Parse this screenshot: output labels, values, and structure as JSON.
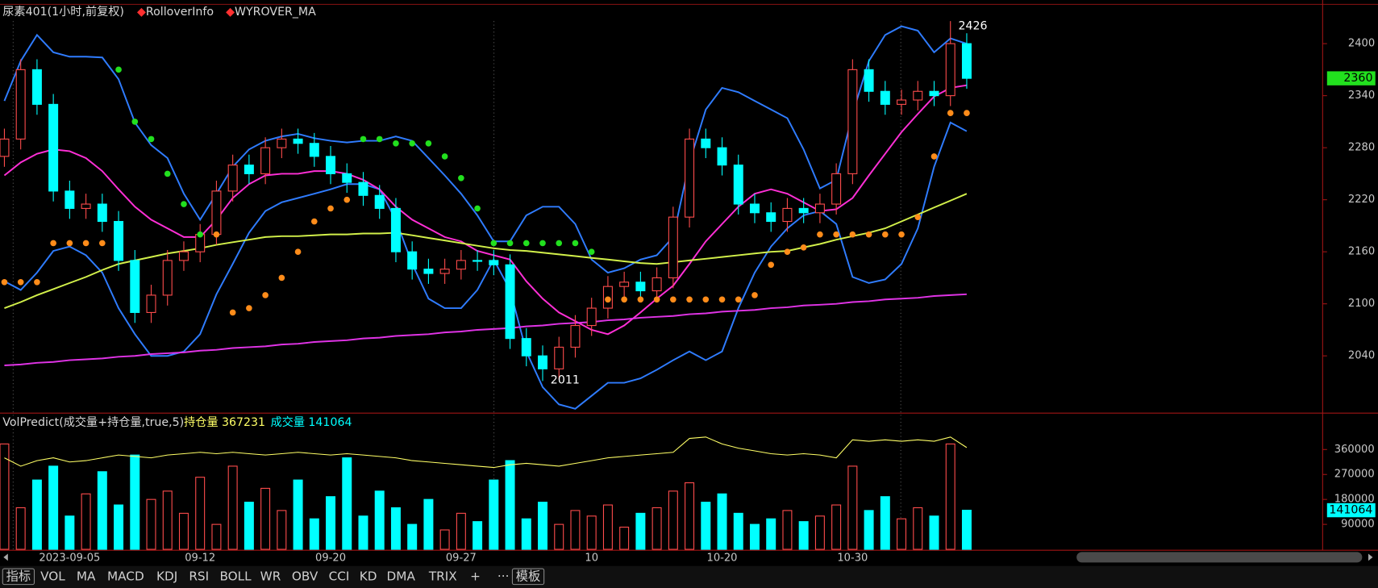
{
  "header": {
    "title": "尿素401(1小时,前复权)",
    "indicators": [
      "RolloverInfo",
      "WYROVER_MA"
    ]
  },
  "chart_data": [
    {
      "type": "candlestick",
      "categories": [
        null,
        null,
        null,
        null,
        "2023-09-05",
        null,
        null,
        null,
        null,
        null,
        null,
        null,
        "09-12",
        null,
        null,
        null,
        null,
        null,
        null,
        null,
        "09-20",
        null,
        null,
        null,
        null,
        null,
        null,
        null,
        "09-27",
        null,
        null,
        null,
        null,
        null,
        null,
        null,
        "10",
        null,
        null,
        null,
        null,
        null,
        null,
        null,
        "10-20",
        null,
        null,
        null,
        null,
        null,
        null,
        null,
        "10-30",
        null,
        null,
        null,
        null,
        null,
        null,
        null
      ],
      "open": [
        2270,
        2290,
        2370,
        2330,
        2230,
        2210,
        2215,
        2195,
        2150,
        2090,
        2110,
        2150,
        2160,
        2180,
        2230,
        2260,
        2250,
        2280,
        2290,
        2285,
        2270,
        2250,
        2240,
        2225,
        2210,
        2160,
        2140,
        2135,
        2140,
        2150,
        2150,
        2145,
        2060,
        2040,
        2025,
        2050,
        2075,
        2095,
        2120,
        2125,
        2115,
        2130,
        2200,
        2290,
        2280,
        2260,
        2215,
        2205,
        2195,
        2210,
        2205,
        2215,
        2250,
        2370,
        2345,
        2330,
        2335,
        2345,
        2340,
        2400
      ],
      "high": [
        2302,
        2382,
        2382,
        2342,
        2242,
        2227,
        2227,
        2207,
        2162,
        2122,
        2162,
        2172,
        2192,
        2242,
        2272,
        2272,
        2292,
        2302,
        2302,
        2297,
        2282,
        2262,
        2252,
        2237,
        2222,
        2172,
        2152,
        2152,
        2162,
        2162,
        2162,
        2157,
        2072,
        2052,
        2062,
        2087,
        2107,
        2132,
        2137,
        2137,
        2142,
        2212,
        2302,
        2302,
        2292,
        2272,
        2227,
        2217,
        2222,
        2222,
        2227,
        2262,
        2382,
        2382,
        2357,
        2347,
        2357,
        2357,
        2426,
        2412
      ],
      "low": [
        2258,
        2278,
        2318,
        2218,
        2198,
        2198,
        2183,
        2138,
        2078,
        2078,
        2098,
        2138,
        2148,
        2168,
        2218,
        2238,
        2238,
        2268,
        2273,
        2258,
        2238,
        2228,
        2213,
        2198,
        2148,
        2128,
        2123,
        2123,
        2128,
        2138,
        2133,
        2048,
        2028,
        2011,
        2013,
        2038,
        2063,
        2083,
        2108,
        2103,
        2103,
        2118,
        2188,
        2268,
        2248,
        2203,
        2193,
        2183,
        2183,
        2193,
        2193,
        2203,
        2238,
        2333,
        2318,
        2318,
        2323,
        2328,
        2328,
        2348
      ],
      "close": [
        2290,
        2370,
        2330,
        2230,
        2210,
        2215,
        2195,
        2150,
        2090,
        2110,
        2150,
        2160,
        2180,
        2230,
        2260,
        2250,
        2280,
        2290,
        2285,
        2270,
        2250,
        2240,
        2225,
        2210,
        2160,
        2140,
        2135,
        2140,
        2150,
        2150,
        2145,
        2060,
        2040,
        2025,
        2050,
        2075,
        2095,
        2120,
        2125,
        2115,
        2130,
        2200,
        2290,
        2280,
        2260,
        2215,
        2205,
        2195,
        2210,
        2205,
        2215,
        2250,
        2370,
        2345,
        2330,
        2335,
        2345,
        2340,
        2400,
        2360
      ],
      "up_color": "#ff4c4c",
      "down_color": "#00ffff",
      "lines": [
        {
          "color": "#2f7cff",
          "values": [
            2334,
            2380,
            2410,
            2390,
            2385,
            2385,
            2384,
            2359,
            2309,
            2283,
            2268,
            2227,
            2197,
            2227,
            2258,
            2278,
            2288,
            2293,
            2296,
            2291,
            2288,
            2286,
            2288,
            2288,
            2293,
            2288,
            2268,
            2248,
            2227,
            2202,
            2172,
            2172,
            2202,
            2212,
            2212,
            2192,
            2151,
            2136,
            2141,
            2151,
            2156,
            2177,
            2263,
            2324,
            2349,
            2344,
            2334,
            2324,
            2314,
            2278,
            2233,
            2243,
            2319,
            2380,
            2410,
            2420,
            2415,
            2390,
            2406,
            2400
          ]
        },
        {
          "color": "#2f7cff",
          "values": [
            2126,
            2116,
            2136,
            2161,
            2166,
            2156,
            2136,
            2095,
            2065,
            2040,
            2040,
            2045,
            2065,
            2111,
            2146,
            2182,
            2207,
            2217,
            2222,
            2227,
            2232,
            2238,
            2238,
            2232,
            2197,
            2146,
            2106,
            2095,
            2095,
            2116,
            2151,
            2116,
            2045,
            2004,
            1984,
            1979,
            1994,
            2009,
            2009,
            2014,
            2024,
            2035,
            2045,
            2035,
            2045,
            2095,
            2136,
            2166,
            2187,
            2202,
            2207,
            2192,
            2131,
            2124,
            2128,
            2146,
            2187,
            2258,
            2309,
            2299
          ]
        },
        {
          "color": "#ff2fd6",
          "values": [
            2248,
            2263,
            2273,
            2278,
            2276,
            2268,
            2253,
            2232,
            2212,
            2197,
            2187,
            2177,
            2177,
            2197,
            2222,
            2238,
            2248,
            2250,
            2250,
            2253,
            2253,
            2250,
            2243,
            2232,
            2212,
            2197,
            2187,
            2177,
            2172,
            2161,
            2156,
            2151,
            2126,
            2106,
            2090,
            2080,
            2070,
            2065,
            2075,
            2090,
            2106,
            2121,
            2146,
            2172,
            2192,
            2212,
            2227,
            2232,
            2227,
            2217,
            2207,
            2209,
            2222,
            2248,
            2273,
            2298,
            2319,
            2339,
            2349,
            2352
          ]
        },
        {
          "color": "#d2f04a",
          "values": [
            2095,
            2102,
            2110,
            2117,
            2124,
            2131,
            2139,
            2146,
            2150,
            2154,
            2158,
            2161,
            2164,
            2168,
            2171,
            2174,
            2177,
            2178,
            2178,
            2179,
            2180,
            2180,
            2181,
            2181,
            2182,
            2179,
            2176,
            2173,
            2170,
            2167,
            2164,
            2162,
            2161,
            2159,
            2157,
            2155,
            2153,
            2151,
            2149,
            2147,
            2146,
            2148,
            2150,
            2152,
            2154,
            2156,
            2158,
            2160,
            2161,
            2165,
            2169,
            2174,
            2178,
            2182,
            2187,
            2195,
            2203,
            2211,
            2219,
            2227
          ]
        },
        {
          "color": "#e033e6",
          "values": [
            2029,
            2030,
            2032,
            2033,
            2035,
            2036,
            2037,
            2039,
            2040,
            2042,
            2043,
            2044,
            2046,
            2047,
            2049,
            2050,
            2051,
            2053,
            2054,
            2056,
            2057,
            2058,
            2060,
            2061,
            2063,
            2064,
            2065,
            2067,
            2068,
            2070,
            2071,
            2072,
            2074,
            2075,
            2077,
            2078,
            2079,
            2081,
            2082,
            2084,
            2085,
            2086,
            2088,
            2089,
            2091,
            2092,
            2093,
            2095,
            2096,
            2098,
            2099,
            2100,
            2102,
            2103,
            2105,
            2106,
            2107,
            2109,
            2110,
            2111
          ]
        }
      ],
      "sar": {
        "below_color": "#ff8c1a",
        "above_color": "#22e01e",
        "values": [
          2125,
          2125,
          2125,
          2170,
          2170,
          2170,
          2170,
          2370,
          2310,
          2290,
          2250,
          2215,
          2180,
          2180,
          2090,
          2095,
          2110,
          2130,
          2160,
          2195,
          2210,
          2220,
          2290,
          2290,
          2285,
          2285,
          2285,
          2270,
          2245,
          2210,
          2170,
          2170,
          2170,
          2170,
          2170,
          2170,
          2160,
          2105,
          2105,
          2105,
          2105,
          2105,
          2105,
          2105,
          2105,
          2105,
          2110,
          2145,
          2160,
          2165,
          2180,
          2180,
          2180,
          2180,
          2180,
          2180,
          2200,
          2270,
          2320,
          2320
        ]
      },
      "ylim": [
        1974,
        2426
      ],
      "yticks": [
        2040,
        2100,
        2160,
        2220,
        2280,
        2340,
        2400
      ],
      "last_color": "#22e01e"
    },
    {
      "type": "bar",
      "title": "VolPredict(成交量+持仓量,true,5)",
      "series": [
        {
          "name": "持仓量",
          "color": "#ffff66",
          "values": [
            330000,
            300000,
            320000,
            330000,
            315000,
            320000,
            330000,
            340000,
            335000,
            330000,
            340000,
            345000,
            350000,
            345000,
            350000,
            345000,
            340000,
            345000,
            350000,
            345000,
            340000,
            345000,
            340000,
            335000,
            330000,
            320000,
            315000,
            310000,
            305000,
            300000,
            295000,
            305000,
            310000,
            305000,
            300000,
            310000,
            320000,
            330000,
            335000,
            340000,
            345000,
            350000,
            400000,
            405000,
            380000,
            365000,
            355000,
            345000,
            340000,
            345000,
            340000,
            330000,
            395000,
            390000,
            395000,
            390000,
            395000,
            390000,
            405000,
            367231
          ]
        },
        {
          "name": "成交量",
          "color": "#00ffff",
          "values": [
            380000,
            150000,
            250000,
            300000,
            120000,
            200000,
            280000,
            160000,
            340000,
            180000,
            210000,
            130000,
            260000,
            90000,
            300000,
            170000,
            220000,
            140000,
            250000,
            110000,
            190000,
            330000,
            120000,
            210000,
            150000,
            90000,
            180000,
            70000,
            130000,
            100000,
            250000,
            320000,
            110000,
            170000,
            90000,
            140000,
            120000,
            160000,
            80000,
            130000,
            150000,
            210000,
            240000,
            170000,
            200000,
            130000,
            90000,
            110000,
            140000,
            100000,
            120000,
            160000,
            300000,
            140000,
            190000,
            110000,
            150000,
            120000,
            380000,
            141064
          ]
        }
      ],
      "ylim": [
        0,
        485000
      ],
      "yticks": [
        90000,
        180000,
        270000,
        360000
      ]
    }
  ],
  "toolbar": {
    "tabs": [
      "指标",
      "VOL",
      "MA",
      "MACD",
      "KDJ",
      "RSI",
      "BOLL",
      "WR",
      "OBV",
      "CCI",
      "KD",
      "DMA",
      "TRIX",
      "+",
      "···",
      "模板"
    ]
  }
}
